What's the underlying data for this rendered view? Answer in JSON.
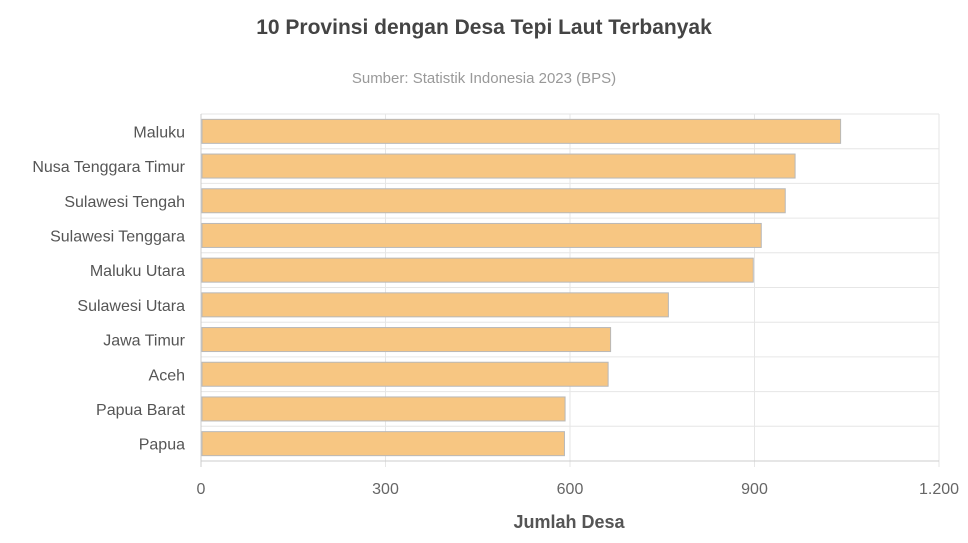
{
  "chart_data": {
    "type": "bar",
    "orientation": "horizontal",
    "title": "10 Provinsi dengan Desa Tepi Laut Terbanyak",
    "subtitle": "Sumber: Statistik Indonesia 2023 (BPS)",
    "xlabel": "Jumlah Desa",
    "ylabel": "",
    "categories": [
      "Maluku",
      "Nusa Tenggara Timur",
      "Sulawesi Tengah",
      "Sulawesi Tenggara",
      "Maluku Utara",
      "Sulawesi Utara",
      "Jawa Timur",
      "Aceh",
      "Papua Barat",
      "Papua"
    ],
    "values": [
      1040,
      966,
      950,
      911,
      898,
      760,
      666,
      662,
      592,
      591
    ],
    "xlim": [
      0,
      1200
    ],
    "xticks": [
      0,
      300,
      600,
      900,
      1200
    ],
    "xtick_labels": [
      "0",
      "300",
      "600",
      "900",
      "1.200"
    ],
    "grid": true,
    "legend": "none",
    "bar_color": "#f7c682",
    "bar_border_color": "#b8b8b8"
  }
}
